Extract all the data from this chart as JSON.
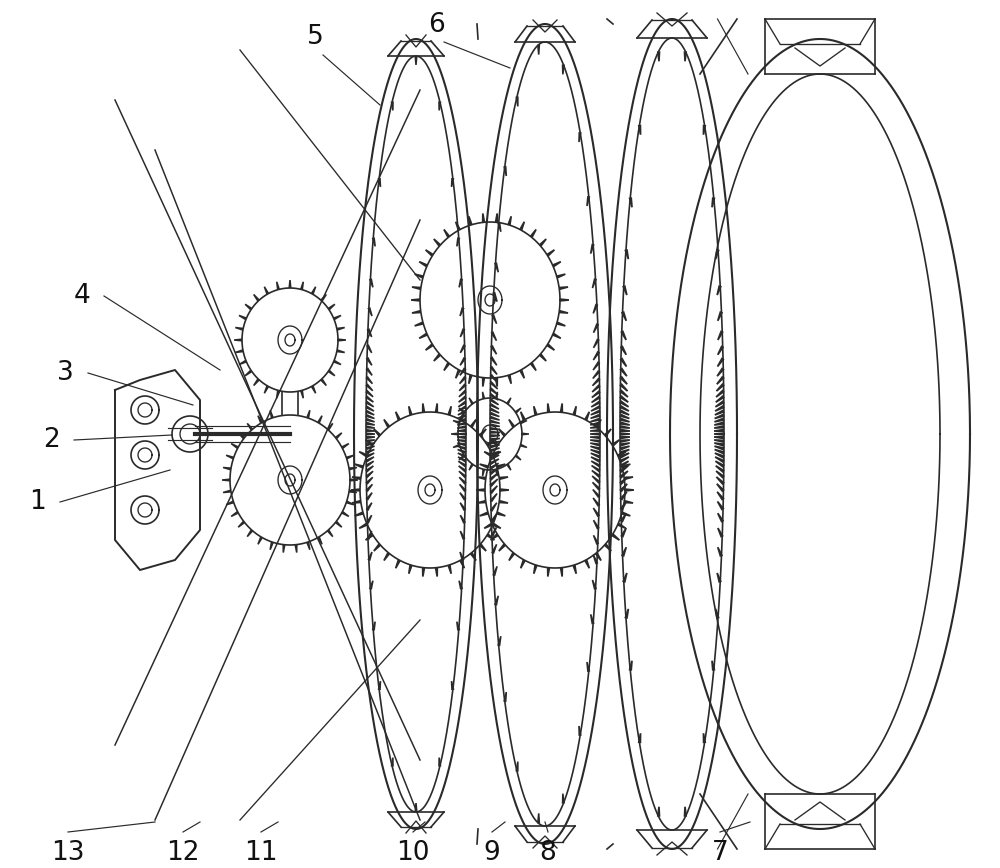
{
  "bg_color": "#ffffff",
  "line_color": "#2a2a2a",
  "lw": 1.2,
  "figsize": [
    10.0,
    8.68
  ],
  "dpi": 100,
  "label_fontsize": 19
}
